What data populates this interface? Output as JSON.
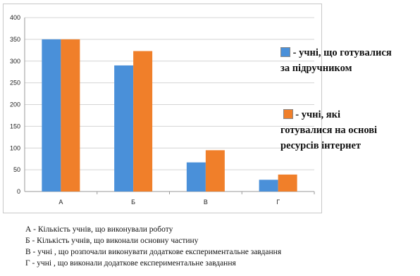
{
  "chart_data": {
    "type": "bar",
    "categories": [
      "А",
      "Б",
      "В",
      "Г"
    ],
    "series": [
      {
        "name": "- учні, що готувалися за підручником",
        "color": "#4a90d9",
        "values": [
          350,
          290,
          67,
          27
        ]
      },
      {
        "name": "- учні, які готувалися на основі ресурсів інтернет",
        "color": "#f07f2a",
        "values": [
          350,
          323,
          95,
          39
        ]
      }
    ],
    "yticks": [
      "0",
      "50",
      "100",
      "150",
      "200",
      "250",
      "300",
      "350",
      "400"
    ],
    "ylim": [
      0,
      400
    ],
    "grid": true,
    "legend_position": "right"
  },
  "legend": {
    "item1_line1": "- учні, що готувалися",
    "item1_line2": "за підручником",
    "item2_line1": "- учні, які",
    "item2_line2": "готувалися на основі",
    "item2_line3": "ресурсів інтернет"
  },
  "notes": [
    "А - Кількість учнів, що виконували роботу",
    "Б - Кількість учнів, що виконали основну частину",
    "В - учні , що розпочали виконувати додаткове експериментальне завдання",
    "Г -  учні  , що виконали додаткове експериментальне завдання"
  ]
}
